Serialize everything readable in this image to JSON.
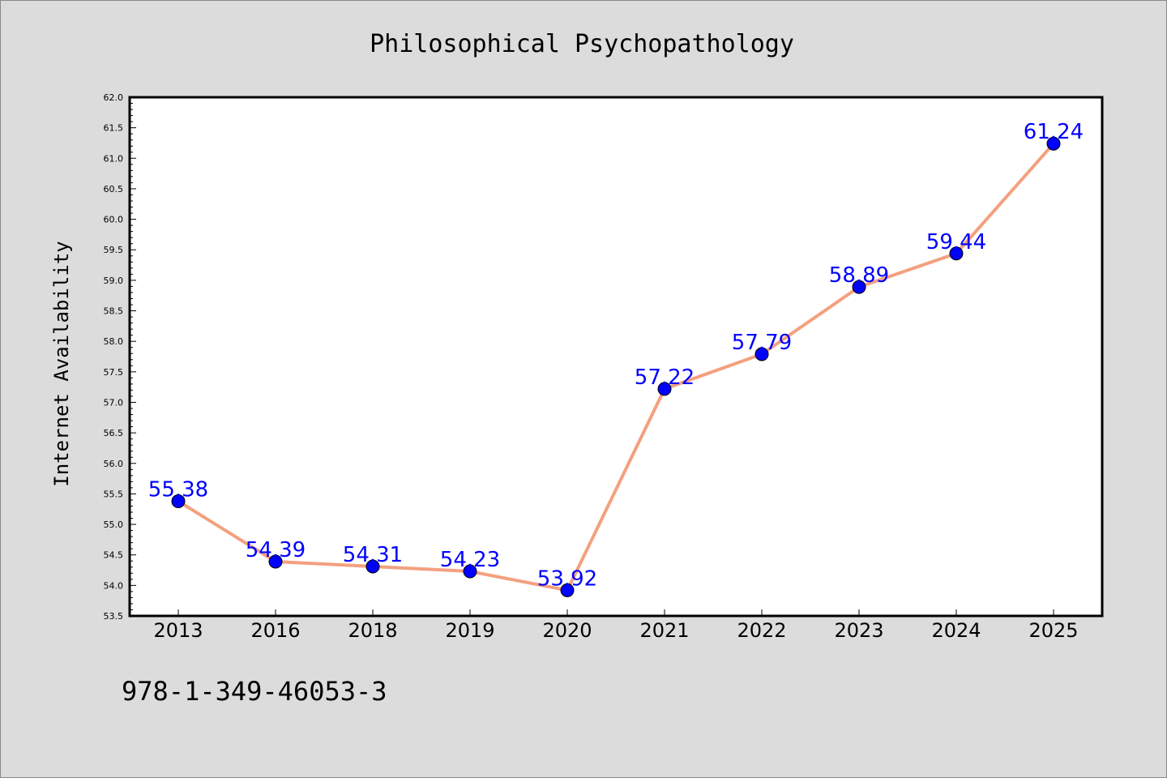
{
  "chart_data": {
    "type": "line",
    "title": "Philosophical Psychopathology",
    "xlabel": "",
    "ylabel": "Internet Availability",
    "categories": [
      "2013",
      "2016",
      "2018",
      "2019",
      "2020",
      "2021",
      "2022",
      "2023",
      "2024",
      "2025"
    ],
    "series": [
      {
        "values": [
          55.38,
          54.39,
          54.31,
          54.23,
          53.92,
          57.22,
          57.79,
          58.89,
          59.44,
          61.24
        ]
      }
    ],
    "data_labels": [
      "55.38",
      "54.39",
      "54.31",
      "54.23",
      "53.92",
      "57.22",
      "57.79",
      "58.89",
      "59.44",
      "61.24"
    ],
    "ylim": [
      53.5,
      62.0
    ],
    "yticks": [
      "53.5",
      "54.0",
      "54.5",
      "55.0",
      "55.5",
      "56.0",
      "56.5",
      "57.0",
      "57.5",
      "58.0",
      "58.5",
      "59.0",
      "59.5",
      "60.0",
      "60.5",
      "61.0",
      "61.5",
      "62.0"
    ],
    "grid": false,
    "legend": "none",
    "colors": {
      "line": "#f4a07f",
      "marker": "#0000ff",
      "label": "#0000ff",
      "background": "#dcdcdc",
      "plot_background": "#ffffff"
    }
  },
  "footer": {
    "isbn": "978-1-349-46053-3"
  }
}
